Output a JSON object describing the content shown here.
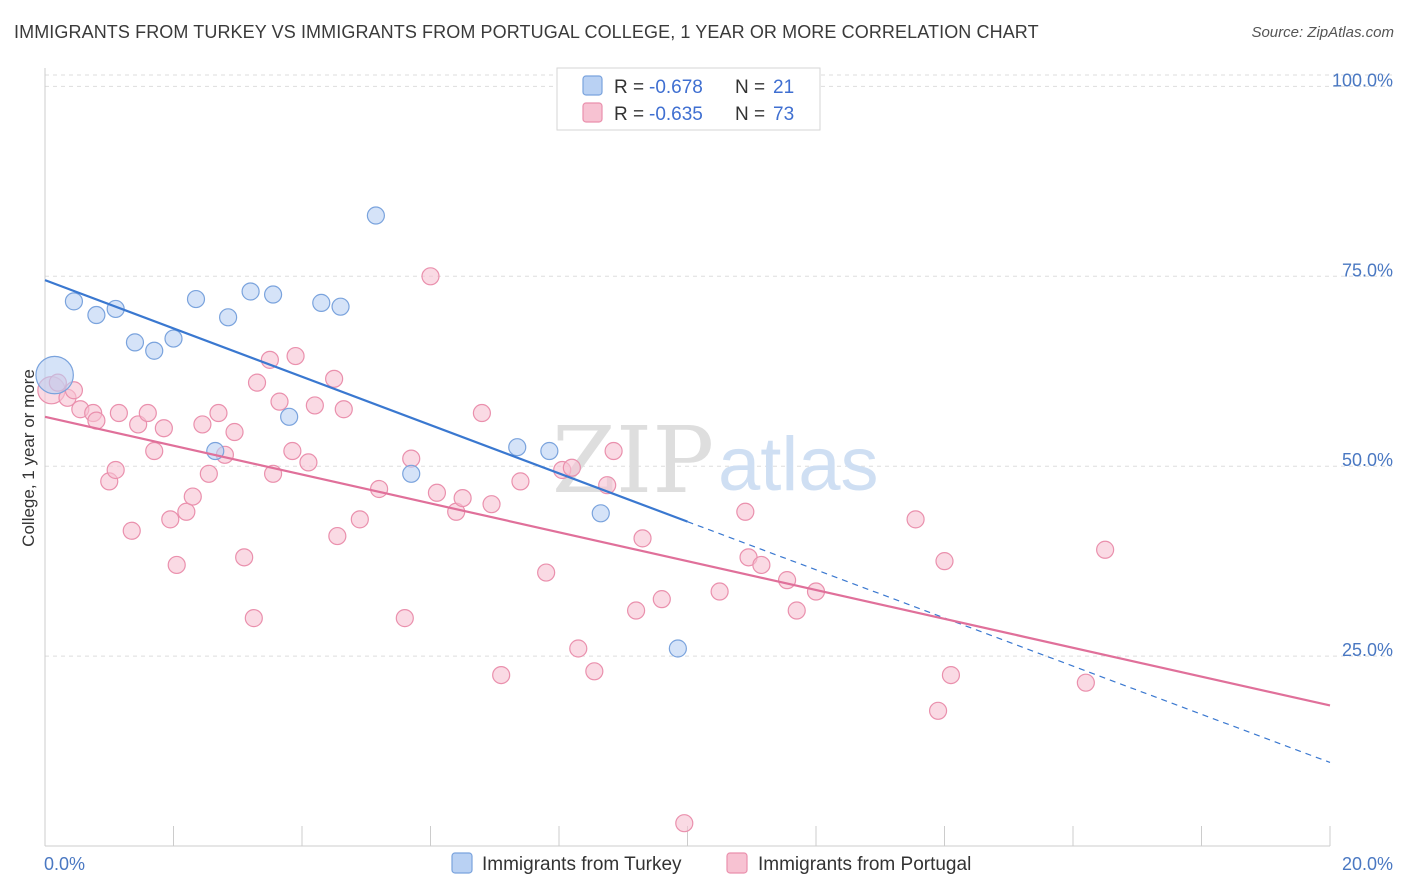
{
  "title": "IMMIGRANTS FROM TURKEY VS IMMIGRANTS FROM PORTUGAL COLLEGE, 1 YEAR OR MORE CORRELATION CHART",
  "source": "Source: ZipAtlas.com",
  "watermark": {
    "zip": "ZIP",
    "atlas": "atlas"
  },
  "colors": {
    "turkey_fill": "#b9d1f3",
    "turkey_stroke": "#7aa3dd",
    "turkey_line": "#3a78d0",
    "portugal_fill": "#f7c2d2",
    "portugal_stroke": "#ea90ad",
    "portugal_line": "#e0709a",
    "axis_label": "#4a78c2",
    "grid": "#dddddd"
  },
  "legend": {
    "rows": [
      {
        "r_label": "R =",
        "r_value": "-0.678",
        "n_label": "N =",
        "n_value": "21"
      },
      {
        "r_label": "R =",
        "r_value": "-0.635",
        "n_label": "N =",
        "n_value": "73"
      }
    ]
  },
  "chart_data": {
    "type": "scatter",
    "xlabel": "",
    "ylabel": "College, 1 year or more",
    "xlim": [
      0,
      20
    ],
    "ylim": [
      0,
      101.5
    ],
    "x_tick_labels": [
      "0.0%",
      "20.0%"
    ],
    "y_ticks": [
      {
        "value": 25,
        "label": "25.0%"
      },
      {
        "value": 50,
        "label": "50.0%"
      },
      {
        "value": 75,
        "label": "75.0%"
      },
      {
        "value": 100,
        "label": "100.0%"
      }
    ],
    "series": [
      {
        "name": "Immigrants from Turkey",
        "points": [
          [
            0.15,
            62.0,
            22
          ],
          [
            0.45,
            71.7,
            10
          ],
          [
            0.8,
            69.9,
            10
          ],
          [
            1.1,
            70.7,
            10
          ],
          [
            1.4,
            66.3,
            10
          ],
          [
            1.7,
            65.2,
            10
          ],
          [
            2.0,
            66.8,
            10
          ],
          [
            2.35,
            72.0,
            10
          ],
          [
            2.85,
            69.6,
            10
          ],
          [
            3.2,
            73.0,
            10
          ],
          [
            3.55,
            72.6,
            10
          ],
          [
            4.3,
            71.5,
            10
          ],
          [
            4.6,
            71.0,
            10
          ],
          [
            5.15,
            83.0,
            10
          ],
          [
            3.8,
            56.5,
            10
          ],
          [
            2.65,
            52.0,
            10
          ],
          [
            5.7,
            49.0,
            10
          ],
          [
            7.35,
            52.5,
            10
          ],
          [
            7.85,
            52.0,
            10
          ],
          [
            8.65,
            43.8,
            10
          ],
          [
            9.85,
            26.0,
            10
          ]
        ],
        "trend": {
          "x0": 0,
          "y0": 74.5,
          "x1": 10,
          "y1": 42.7,
          "dash_to_x": 20,
          "dash_to_y": 11.0
        }
      },
      {
        "name": "Immigrants from Portugal",
        "points": [
          [
            0.1,
            60.0,
            16
          ],
          [
            0.2,
            61.0,
            10
          ],
          [
            0.35,
            59.0,
            10
          ],
          [
            0.45,
            60.0,
            10
          ],
          [
            0.55,
            57.5,
            10
          ],
          [
            0.75,
            57.0,
            10
          ],
          [
            0.8,
            56.0,
            10
          ],
          [
            1.15,
            57.0,
            10
          ],
          [
            1.0,
            48.0,
            10
          ],
          [
            1.1,
            49.5,
            10
          ],
          [
            1.35,
            41.5,
            10
          ],
          [
            1.45,
            55.5,
            10
          ],
          [
            1.6,
            57.0,
            10
          ],
          [
            1.7,
            52.0,
            10
          ],
          [
            1.85,
            55.0,
            10
          ],
          [
            1.95,
            43.0,
            10
          ],
          [
            2.05,
            37.0,
            10
          ],
          [
            2.2,
            44.0,
            10
          ],
          [
            2.3,
            46.0,
            10
          ],
          [
            2.45,
            55.5,
            10
          ],
          [
            2.55,
            49.0,
            10
          ],
          [
            2.7,
            57.0,
            10
          ],
          [
            2.8,
            51.5,
            10
          ],
          [
            2.95,
            54.5,
            10
          ],
          [
            3.1,
            38.0,
            10
          ],
          [
            3.25,
            30.0,
            10
          ],
          [
            3.3,
            61.0,
            10
          ],
          [
            3.5,
            64.0,
            10
          ],
          [
            3.55,
            49.0,
            10
          ],
          [
            3.65,
            58.5,
            10
          ],
          [
            3.85,
            52.0,
            10
          ],
          [
            3.9,
            64.5,
            10
          ],
          [
            4.1,
            50.5,
            10
          ],
          [
            4.2,
            58.0,
            10
          ],
          [
            4.5,
            61.5,
            10
          ],
          [
            4.55,
            40.8,
            10
          ],
          [
            4.65,
            57.5,
            10
          ],
          [
            4.9,
            43.0,
            10
          ],
          [
            5.2,
            47.0,
            10
          ],
          [
            5.6,
            30.0,
            10
          ],
          [
            5.7,
            51.0,
            10
          ],
          [
            6.0,
            75.0,
            10
          ],
          [
            6.1,
            46.5,
            10
          ],
          [
            6.4,
            44.0,
            10
          ],
          [
            6.5,
            45.8,
            10
          ],
          [
            6.8,
            57.0,
            10
          ],
          [
            6.95,
            45.0,
            10
          ],
          [
            7.1,
            22.5,
            10
          ],
          [
            7.4,
            48.0,
            10
          ],
          [
            7.8,
            36.0,
            10
          ],
          [
            8.05,
            49.5,
            10
          ],
          [
            8.2,
            49.8,
            10
          ],
          [
            8.3,
            26.0,
            10
          ],
          [
            8.55,
            23.0,
            10
          ],
          [
            8.75,
            47.5,
            10
          ],
          [
            8.85,
            52.0,
            10
          ],
          [
            9.2,
            31.0,
            10
          ],
          [
            9.3,
            40.5,
            10
          ],
          [
            9.6,
            32.5,
            10
          ],
          [
            9.95,
            3.0,
            10
          ],
          [
            10.5,
            33.5,
            10
          ],
          [
            10.9,
            44.0,
            10
          ],
          [
            10.95,
            38.0,
            10
          ],
          [
            11.15,
            37.0,
            10
          ],
          [
            11.55,
            35.0,
            10
          ],
          [
            11.7,
            31.0,
            10
          ],
          [
            12.0,
            33.5,
            10
          ],
          [
            13.55,
            43.0,
            10
          ],
          [
            13.9,
            17.8,
            10
          ],
          [
            14.1,
            22.5,
            10
          ],
          [
            14.0,
            37.5,
            10
          ],
          [
            16.2,
            21.5,
            10
          ],
          [
            16.5,
            39.0,
            10
          ]
        ],
        "trend": {
          "x0": 0,
          "y0": 56.5,
          "x1": 20,
          "y1": 18.5
        }
      }
    ]
  }
}
